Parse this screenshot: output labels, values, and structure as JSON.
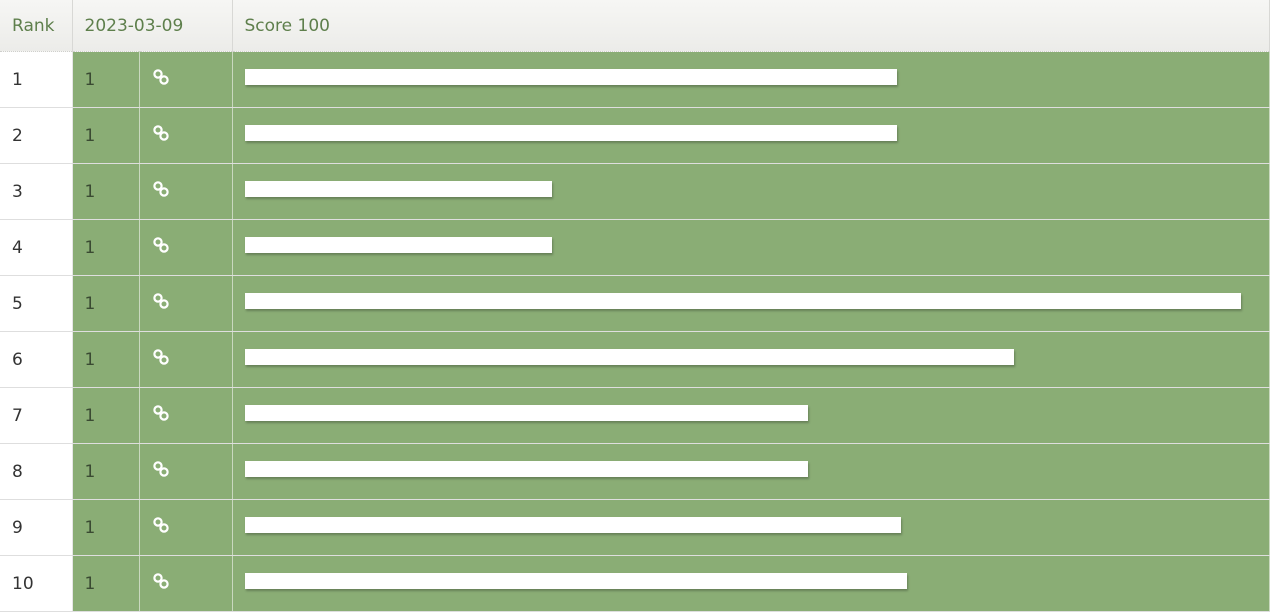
{
  "header": {
    "rank": "Rank",
    "date": "2023-03-09",
    "score": "Score 100"
  },
  "colors": {
    "row_green": "#8aad75",
    "header_text": "#5e7f4c"
  },
  "rows": [
    {
      "rank": "1",
      "position": "1",
      "icon": "link-icon",
      "keyword_redacted": true
    },
    {
      "rank": "2",
      "position": "1",
      "icon": "link-icon",
      "keyword_redacted": true
    },
    {
      "rank": "3",
      "position": "1",
      "icon": "link-icon",
      "keyword_redacted": true
    },
    {
      "rank": "4",
      "position": "1",
      "icon": "link-icon",
      "keyword_redacted": true
    },
    {
      "rank": "5",
      "position": "1",
      "icon": "link-icon",
      "keyword_redacted": true
    },
    {
      "rank": "6",
      "position": "1",
      "icon": "link-icon",
      "keyword_redacted": true
    },
    {
      "rank": "7",
      "position": "1",
      "icon": "link-icon",
      "keyword_redacted": true
    },
    {
      "rank": "8",
      "position": "1",
      "icon": "link-icon",
      "keyword_redacted": true
    },
    {
      "rank": "9",
      "position": "1",
      "icon": "link-icon",
      "keyword_redacted": true
    },
    {
      "rank": "10",
      "position": "1",
      "icon": "link-icon",
      "keyword_redacted": true
    }
  ]
}
